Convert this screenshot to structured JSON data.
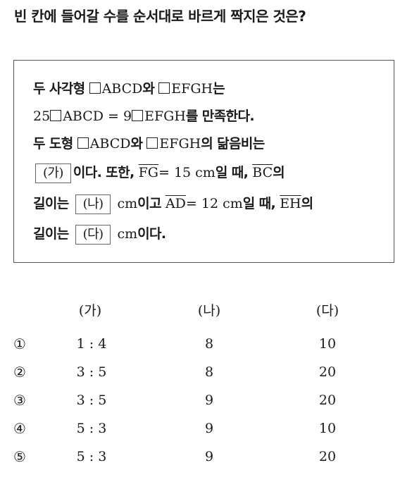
{
  "question": "빈 칸에 들어갈 수를 순서대로 바르게 짝지은 것은?",
  "box": {
    "line1": {
      "a": "두 사각형 ",
      "b": "ABCD",
      "c": "와 ",
      "d": "EFGH",
      "e": "는"
    },
    "line2": {
      "a": "25",
      "b": "ABCD = 9",
      "c": "EFGH",
      "d": "를 만족한다."
    },
    "line3": {
      "a": "두 도형  ",
      "b": "ABCD",
      "c": "와 ",
      "d": "EFGH",
      "e": "의 닮음비는"
    },
    "line4": {
      "blank": "(가)",
      "a": "이다. 또한, ",
      "seg": "FG",
      "b": "= 15 cm",
      "c": "일 때, ",
      "seg2": "BC",
      "d": "의"
    },
    "line5": {
      "a": "길이는 ",
      "blank": "(나)",
      "b": " cm",
      "c": "이고 ",
      "seg": "AD",
      "d": "= 12 cm",
      "e": "일 때, ",
      "seg2": "EH",
      "f": "의"
    },
    "line6": {
      "a": "길이는 ",
      "blank": "(다)",
      "b": " cm",
      "c": "이다."
    }
  },
  "choices": {
    "headers": [
      "(가)",
      "(나)",
      "(다)"
    ],
    "rows": [
      {
        "num": "①",
        "ga": "1 : 4",
        "na": "8",
        "da": "10"
      },
      {
        "num": "②",
        "ga": "3 : 5",
        "na": "8",
        "da": "20"
      },
      {
        "num": "③",
        "ga": "3 : 5",
        "na": "9",
        "da": "20"
      },
      {
        "num": "④",
        "ga": "5 : 3",
        "na": "9",
        "da": "10"
      },
      {
        "num": "⑤",
        "ga": "5 : 3",
        "na": "9",
        "da": "20"
      }
    ]
  }
}
